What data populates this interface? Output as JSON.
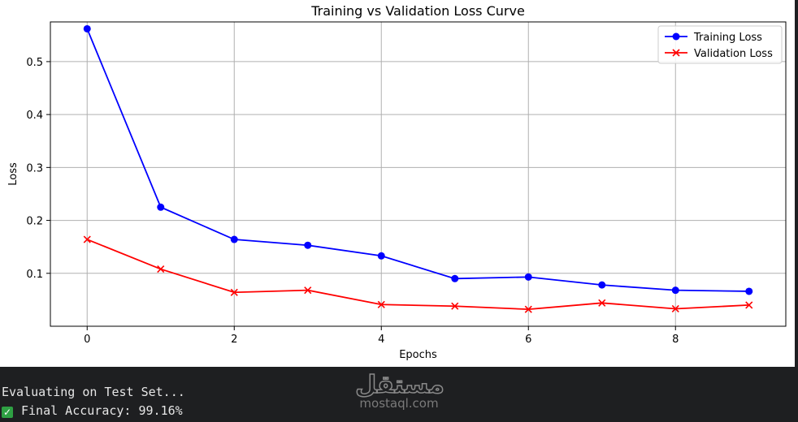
{
  "chart_data": {
    "type": "line",
    "title": "Training vs Validation Loss Curve",
    "xlabel": "Epochs",
    "ylabel": "Loss",
    "xlim": [
      -0.5,
      9.5
    ],
    "ylim": [
      0.0,
      0.575
    ],
    "xticks": [
      0,
      2,
      4,
      6,
      8
    ],
    "yticks": [
      0.1,
      0.2,
      0.3,
      0.4,
      0.5
    ],
    "grid": true,
    "legend_position": "top-right",
    "x": [
      0,
      1,
      2,
      3,
      4,
      5,
      6,
      7,
      8,
      9
    ],
    "series": [
      {
        "name": "Training Loss",
        "color": "#0000ff",
        "marker": "circle",
        "values": [
          0.562,
          0.225,
          0.164,
          0.153,
          0.133,
          0.09,
          0.093,
          0.078,
          0.068,
          0.066
        ]
      },
      {
        "name": "Validation Loss",
        "color": "#ff0000",
        "marker": "x",
        "values": [
          0.164,
          0.108,
          0.064,
          0.068,
          0.041,
          0.038,
          0.032,
          0.044,
          0.033,
          0.04
        ]
      }
    ]
  },
  "console": {
    "line1": "Evaluating on Test Set...",
    "line2_text": "Final Accuracy: 99.16%",
    "check_icon": "check-icon",
    "check_color": "#2ea043"
  },
  "watermark": {
    "arabic": "مستقل",
    "latin": "mostaql.com"
  }
}
